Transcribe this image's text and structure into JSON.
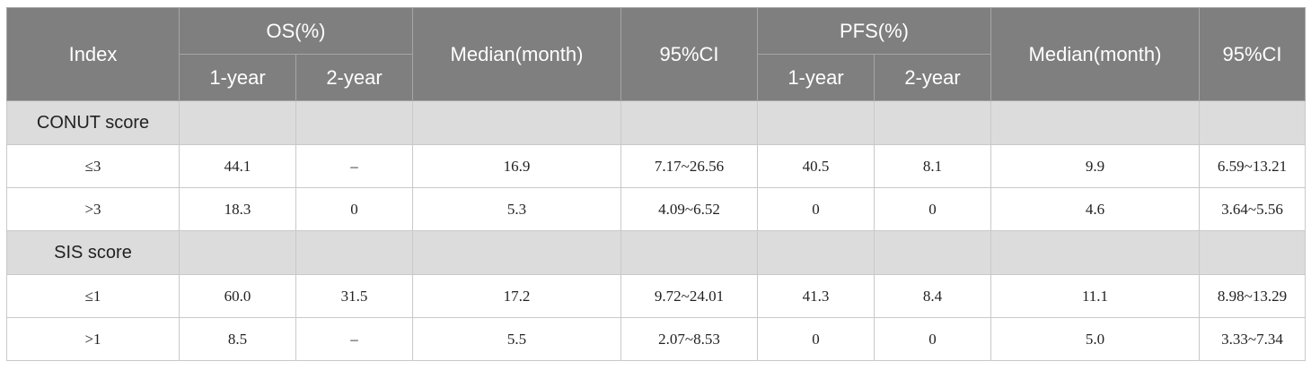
{
  "header": {
    "index": "Index",
    "os": "OS(%)",
    "os_1year": "1-year",
    "os_2year": "2-year",
    "os_median": "Median(month)",
    "os_ci": "95%CI",
    "pfs": "PFS(%)",
    "pfs_1year": "1-year",
    "pfs_2year": "2-year",
    "pfs_median": "Median(month)",
    "pfs_ci": "95%CI"
  },
  "groups": [
    {
      "name": "CONUT score",
      "rows": [
        {
          "index": "≤3",
          "os_1y": "44.1",
          "os_2y": "–",
          "os_median": "16.9",
          "os_ci": "7.17~26.56",
          "pfs_1y": "40.5",
          "pfs_2y": "8.1",
          "pfs_median": "9.9",
          "pfs_ci": "6.59~13.21"
        },
        {
          "index": ">3",
          "os_1y": "18.3",
          "os_2y": "0",
          "os_median": "5.3",
          "os_ci": "4.09~6.52",
          "pfs_1y": "0",
          "pfs_2y": "0",
          "pfs_median": "4.6",
          "pfs_ci": "3.64~5.56"
        }
      ]
    },
    {
      "name": "SIS score",
      "rows": [
        {
          "index": "≤1",
          "os_1y": "60.0",
          "os_2y": "31.5",
          "os_median": "17.2",
          "os_ci": "9.72~24.01",
          "pfs_1y": "41.3",
          "pfs_2y": "8.4",
          "pfs_median": "11.1",
          "pfs_ci": "8.98~13.29"
        },
        {
          "index": ">1",
          "os_1y": "8.5",
          "os_2y": "–",
          "os_median": "5.5",
          "os_ci": "2.07~8.53",
          "pfs_1y": "0",
          "pfs_2y": "0",
          "pfs_median": "5.0",
          "pfs_ci": "3.33~7.34"
        }
      ]
    }
  ]
}
